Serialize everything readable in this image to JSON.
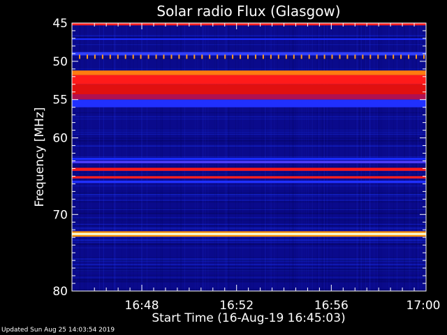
{
  "chart_data": {
    "type": "heatmap",
    "title": "Solar radio Flux (Glasgow)",
    "xlabel": "Start Time (16-Aug-19 16:45:03)",
    "ylabel_main": "Frequency",
    "ylabel_unit": "MHz",
    "x_ticks": [
      "16:48",
      "16:52",
      "16:56",
      "17:00"
    ],
    "x_tick_minutes": [
      48,
      52,
      56,
      60
    ],
    "x_range_minutes": [
      45.05,
      60.0
    ],
    "y_ticks": [
      45,
      50,
      55,
      60,
      70,
      80
    ],
    "y_range": [
      45,
      80
    ],
    "colors": {
      "background": "#0a0a8c",
      "emission_strong": "#ff1a1a",
      "emission_peak": "#ffffcc",
      "emission_mid": "#ff8000"
    },
    "bands": [
      {
        "from": 45.0,
        "to": 45.3,
        "color": "#ff2020"
      },
      {
        "from": 47.0,
        "to": 47.2,
        "color": "#1a2cff"
      },
      {
        "from": 48.8,
        "to": 49.2,
        "color": "#3040ff"
      },
      {
        "from": 51.2,
        "to": 51.8,
        "color": "#ff7a10"
      },
      {
        "from": 51.8,
        "to": 53.0,
        "color": "#ff1a1a"
      },
      {
        "from": 53.0,
        "to": 54.3,
        "color": "#e01010"
      },
      {
        "from": 54.3,
        "to": 55.0,
        "color": "#b01050"
      },
      {
        "from": 55.0,
        "to": 56.0,
        "color": "#2030ff"
      },
      {
        "from": 62.6,
        "to": 62.9,
        "color": "#1a2cff"
      },
      {
        "from": 63.0,
        "to": 63.3,
        "color": "#5040ff"
      },
      {
        "from": 63.9,
        "to": 64.3,
        "color": "#ff1a1a"
      },
      {
        "from": 65.0,
        "to": 65.3,
        "color": "#ff2020"
      },
      {
        "from": 65.6,
        "to": 65.9,
        "color": "#2030ff"
      },
      {
        "from": 72.2,
        "to": 72.4,
        "color": "#ff9000"
      },
      {
        "from": 72.4,
        "to": 72.7,
        "color": "#ffffd0"
      },
      {
        "from": 72.7,
        "to": 72.9,
        "color": "#ff9000"
      }
    ],
    "periodic_line": {
      "freq": 49.4,
      "color": "#ff9a20",
      "count": 46
    },
    "footer": "Updated Sun Aug 25 14:03:54 2019"
  }
}
